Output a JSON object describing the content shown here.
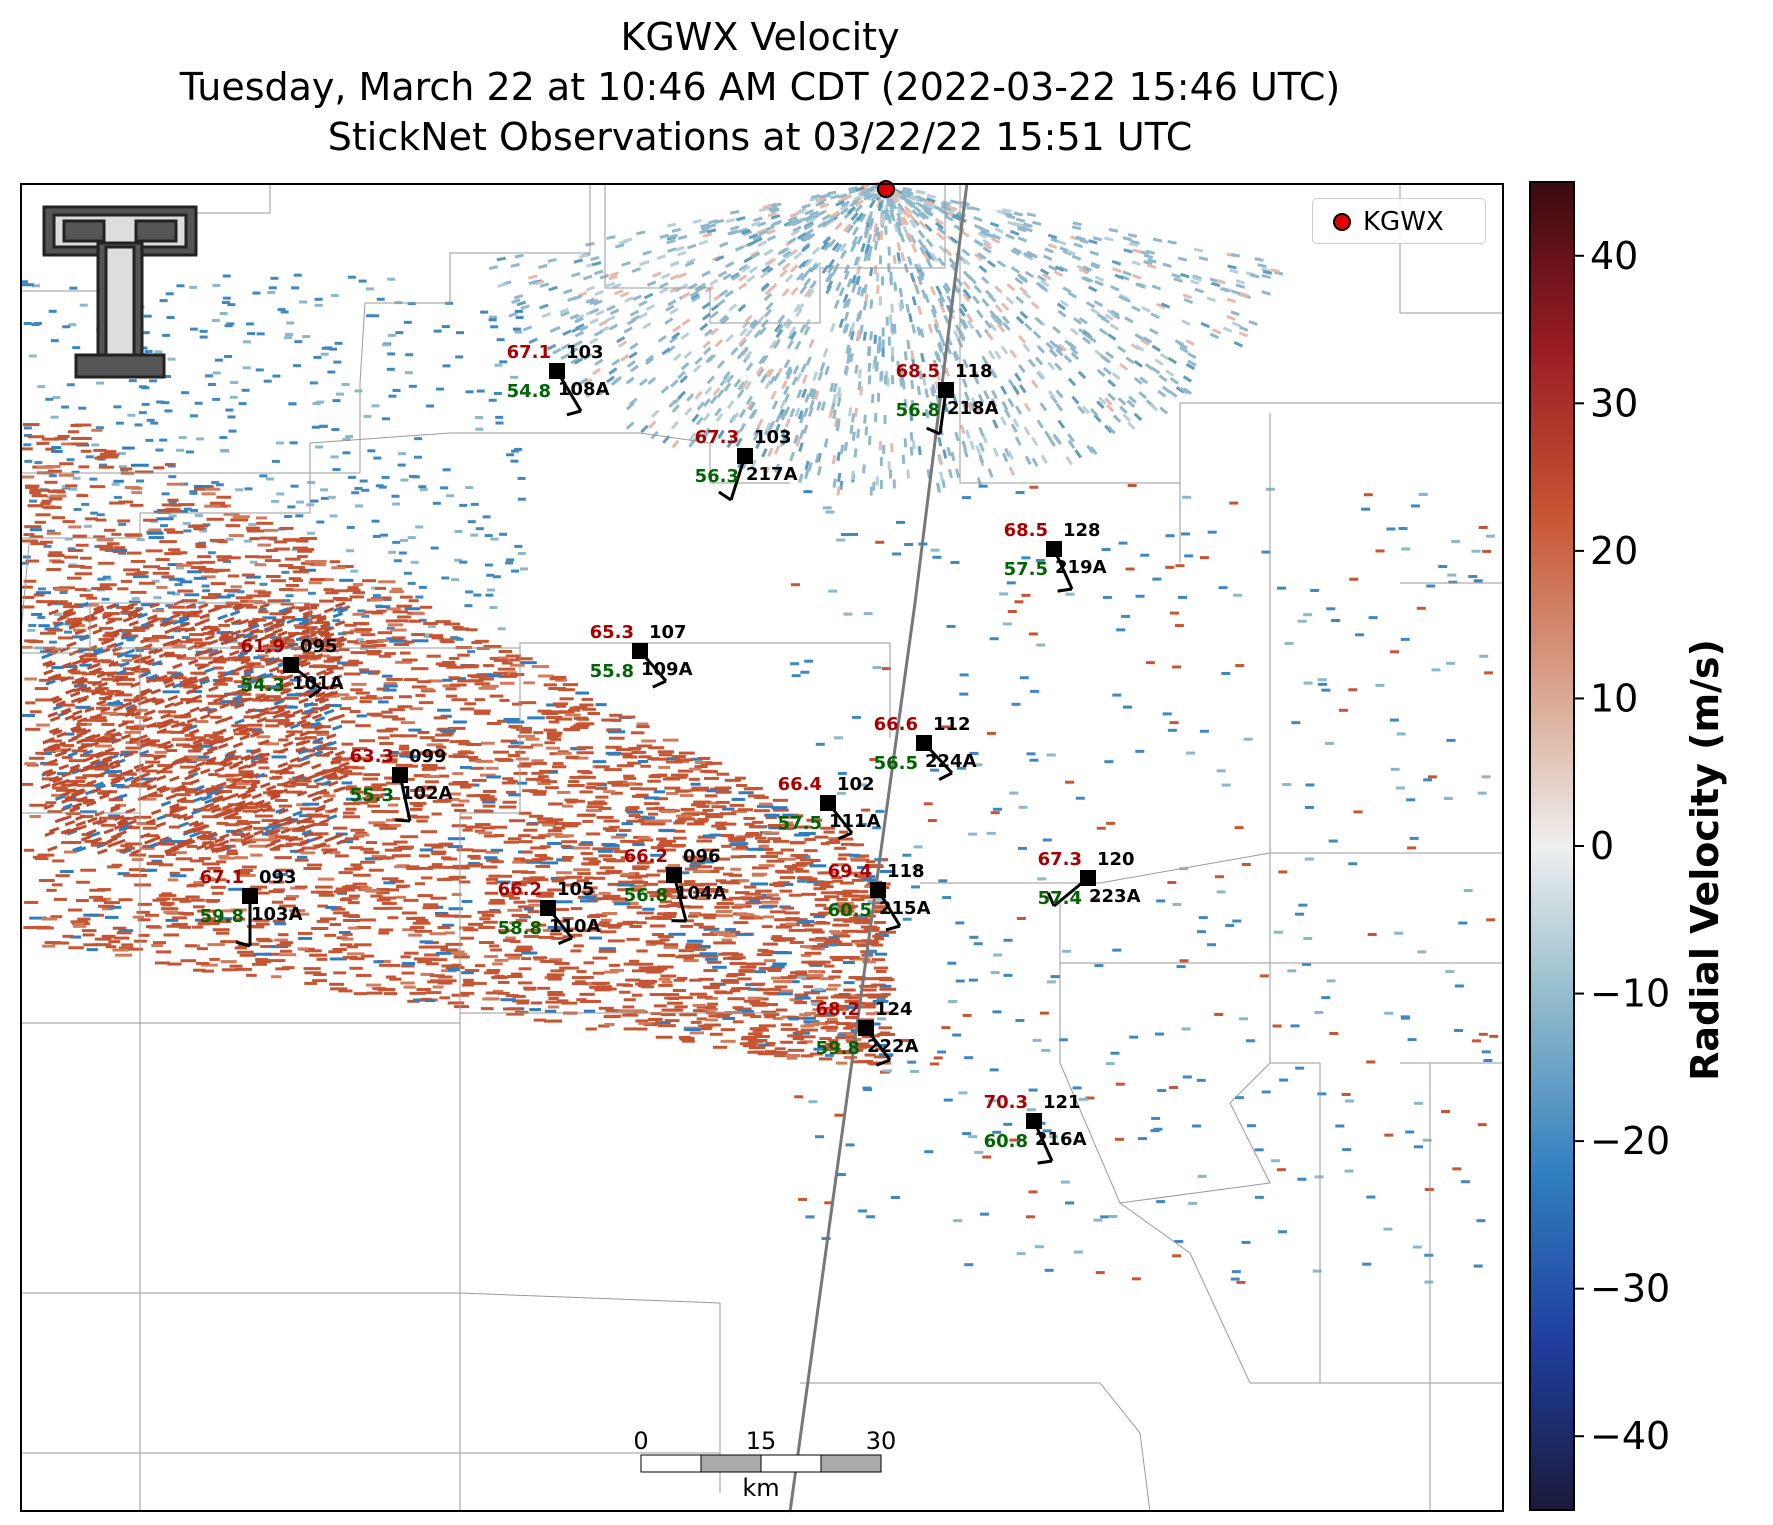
{
  "title": {
    "line1": "KGWX Velocity",
    "line2": "Tuesday, March 22 at 10:46 AM CDT (2022-03-22 15:46 UTC)",
    "line3": "StickNet Observations at 03/22/22 15:51 UTC"
  },
  "legend": {
    "radar_label": "KGWX"
  },
  "colorbar": {
    "label": "Radial Velocity (m/s)",
    "min": -45,
    "max": 45,
    "ticks": [
      "40",
      "30",
      "20",
      "10",
      "0",
      "−10",
      "−20",
      "−30",
      "−40"
    ],
    "colors": [
      "#1a1a3a",
      "#1f3d9e",
      "#2f7dbf",
      "#8ab7c9",
      "#efefef",
      "#d8a088",
      "#c65533",
      "#9a1c24",
      "#3a0a10"
    ]
  },
  "scale_bar": {
    "ticks": [
      "0",
      "15",
      "30"
    ],
    "unit": "km"
  },
  "stations": [
    {
      "id": "108A",
      "temp": "67.1",
      "dew": "54.8",
      "pressure": "103"
    },
    {
      "id": "218A",
      "temp": "68.5",
      "dew": "56.8",
      "pressure": "118"
    },
    {
      "id": "217A",
      "temp": "67.3",
      "dew": "56.3",
      "pressure": "103"
    },
    {
      "id": "219A",
      "temp": "68.5",
      "dew": "57.5",
      "pressure": "128"
    },
    {
      "id": "101A",
      "temp": "61.9",
      "dew": "54.3",
      "pressure": "095"
    },
    {
      "id": "109A",
      "temp": "65.3",
      "dew": "55.8",
      "pressure": "107"
    },
    {
      "id": "224A",
      "temp": "66.6",
      "dew": "56.5",
      "pressure": "112"
    },
    {
      "id": "102A",
      "temp": "63.3",
      "dew": "55.3",
      "pressure": "099"
    },
    {
      "id": "111A",
      "temp": "66.4",
      "dew": "57.5",
      "pressure": "102"
    },
    {
      "id": "103A",
      "temp": "67.1",
      "dew": "59.8",
      "pressure": "093"
    },
    {
      "id": "104A",
      "temp": "66.2",
      "dew": "56.8",
      "pressure": "096"
    },
    {
      "id": "110A",
      "temp": "66.2",
      "dew": "58.8",
      "pressure": "105"
    },
    {
      "id": "215A",
      "temp": "69.4",
      "dew": "60.5",
      "pressure": "118"
    },
    {
      "id": "223A",
      "temp": "67.3",
      "dew": "57.4",
      "pressure": "120"
    },
    {
      "id": "222A",
      "temp": "68.2",
      "dew": "59.8",
      "pressure": "124"
    },
    {
      "id": "216A",
      "temp": "70.3",
      "dew": "60.8",
      "pressure": "121"
    }
  ],
  "colors": {
    "temp": "#a80000",
    "dew": "#006400",
    "radar_dot": "#e00000"
  }
}
